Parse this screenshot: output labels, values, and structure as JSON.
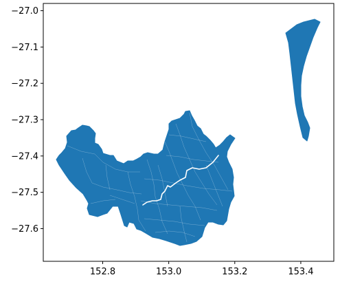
{
  "chart_data": {
    "type": "map",
    "geometry": "choropleth-outline (single fill, suburb boundaries)",
    "fill_color": "#1f77b4",
    "boundary_color": "#ffffff",
    "xlim": [
      152.62,
      153.5
    ],
    "ylim": [
      -27.69,
      -26.98
    ],
    "x_ticks": [
      152.8,
      153.0,
      153.2,
      153.4
    ],
    "x_tick_labels": [
      "152.8",
      "153.0",
      "153.2",
      "153.4"
    ],
    "y_ticks": [
      -27.0,
      -27.1,
      -27.2,
      -27.3,
      -27.4,
      -27.5,
      -27.6
    ],
    "y_tick_labels": [
      "−27.0",
      "−27.1",
      "−27.2",
      "−27.3",
      "−27.4",
      "−27.5",
      "−27.6"
    ],
    "grid": false,
    "xlabel": "",
    "ylabel": "",
    "title": ""
  }
}
